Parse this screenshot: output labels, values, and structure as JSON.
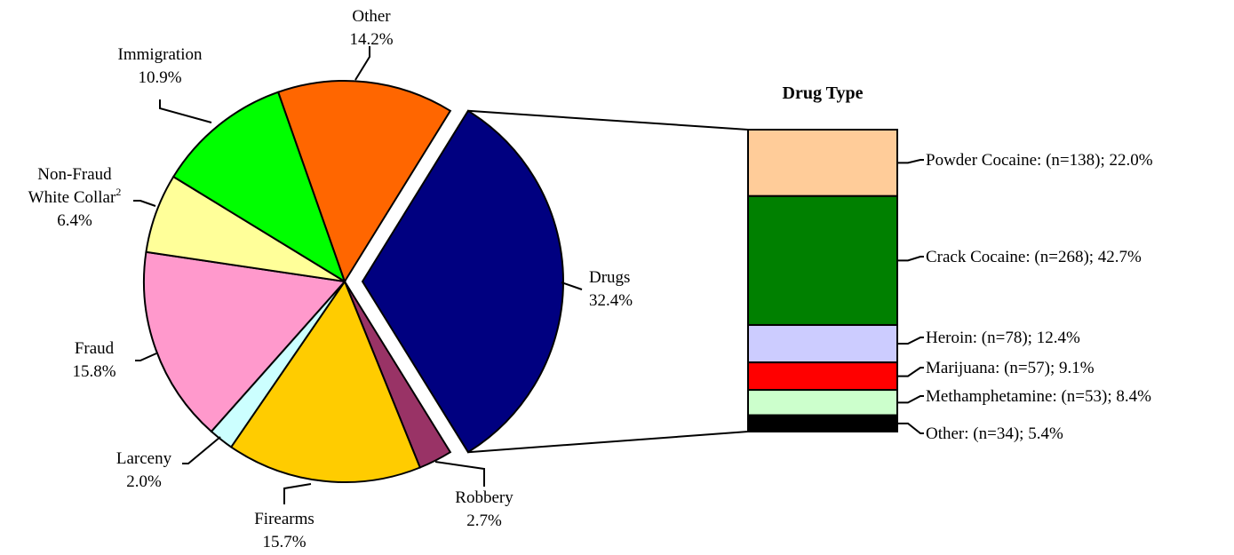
{
  "chart_data": [
    {
      "type": "pie",
      "series": [
        {
          "label_lines": [
            "Drugs",
            "32.4%"
          ],
          "value": 32.4,
          "color": "#000080"
        },
        {
          "label_lines": [
            "Robbery",
            "2.7%"
          ],
          "value": 2.7,
          "color": "#993366"
        },
        {
          "label_lines": [
            "Firearms",
            "15.7%"
          ],
          "value": 15.7,
          "color": "#FFCC00"
        },
        {
          "label_lines": [
            "Larceny",
            "2.0%"
          ],
          "value": 2.0,
          "color": "#CCFFFF"
        },
        {
          "label_lines": [
            "Fraud",
            "15.8%"
          ],
          "value": 15.8,
          "color": "#FF99CC"
        },
        {
          "label_lines": [
            "Non-Fraud",
            "White Collar",
            "6.4%"
          ],
          "superscript": "2",
          "value": 6.4,
          "color": "#FFFF99"
        },
        {
          "label_lines": [
            "Immigration",
            "10.9%"
          ],
          "value": 10.9,
          "color": "#00FF00"
        },
        {
          "label_lines": [
            "Other",
            "14.2%"
          ],
          "value": 14.2,
          "color": "#FF6600"
        }
      ],
      "exploded": "Drugs"
    },
    {
      "type": "bar",
      "stacked": true,
      "title": "Drug Type",
      "series": [
        {
          "label": "Powder Cocaine:  (n=138); 22.0%",
          "value": 22.0,
          "color": "#FFCC99"
        },
        {
          "label": "Crack Cocaine:  (n=268); 42.7%",
          "value": 42.7,
          "color": "#008000"
        },
        {
          "label": "Heroin:  (n=78); 12.4%",
          "value": 12.4,
          "color": "#CCCCFF"
        },
        {
          "label": "Marijuana:  (n=57); 9.1%",
          "value": 9.1,
          "color": "#FF0000"
        },
        {
          "label": "Methamphetamine:  (n=53); 8.4%",
          "value": 8.4,
          "color": "#CCFFCC"
        },
        {
          "label": "Other:  (n=34); 5.4%",
          "value": 5.4,
          "color": "#000000"
        }
      ]
    }
  ]
}
